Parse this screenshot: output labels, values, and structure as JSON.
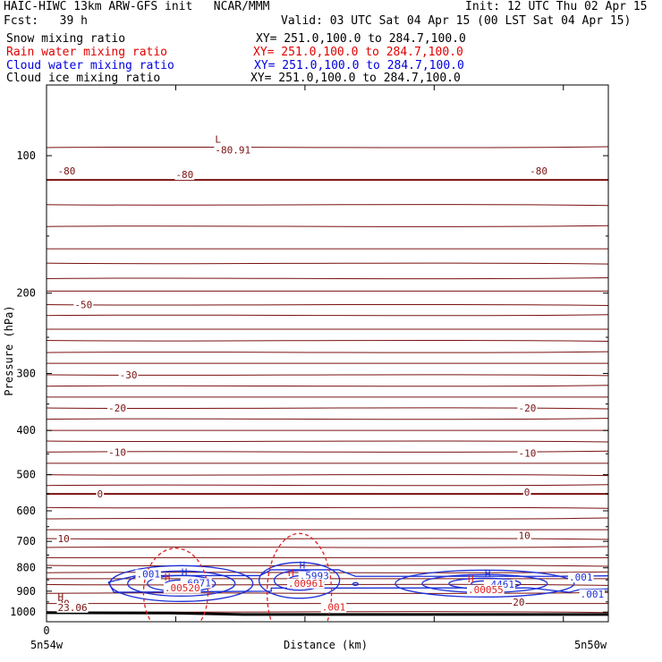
{
  "header": {
    "line1_left": "HAIC-HIWC 13km ARW-GFS init   NCAR/MMM",
    "line1_right": "Init: 12 UTC Thu 02 Apr 15",
    "fcst": "Fcst:   39 h",
    "valid": "Valid: 03 UTC Sat 04 Apr 15 (00 LST Sat 04 Apr 15)",
    "fields": [
      {
        "name": "Snow mixing ratio",
        "xy": "XY= 251.0,100.0 to 284.7,100.0",
        "color": "#000000"
      },
      {
        "name": "Rain water mixing ratio",
        "xy": "XY= 251.0,100.0 to 284.7,100.0",
        "color": "#e00000"
      },
      {
        "name": "Cloud water mixing ratio",
        "xy": "XY= 251.0,100.0 to 284.7,100.0",
        "color": "#0000e0"
      },
      {
        "name": "Cloud ice mixing ratio",
        "xy": "XY= 251.0,100.0 to 284.7,100.0",
        "color": "#000000"
      }
    ]
  },
  "colors": {
    "temperature": "#7a1010",
    "cloud_water": "#1c2fd6",
    "rain_water": "#e02020",
    "surface": "#000000"
  },
  "chart_data": {
    "type": "cross-section contour",
    "xlabel": "Distance (km)",
    "ylabel": "Pressure (hPa)",
    "x_ticks": [
      "0"
    ],
    "x_endpoints": [
      "5n54w",
      "5n50w"
    ],
    "y_ticks": [
      100,
      200,
      300,
      400,
      500,
      600,
      700,
      800,
      900,
      1000
    ],
    "ylim": [
      1050,
      70
    ],
    "y_scale": "log",
    "temperature_contour_labels": [
      {
        "label": "-80",
        "p": 108,
        "x": 0.02
      },
      {
        "label": "-80",
        "p": 110,
        "x": 0.23
      },
      {
        "label": "-80",
        "p": 108,
        "x": 0.86
      },
      {
        "label": "-50",
        "p": 212,
        "x": 0.05
      },
      {
        "label": "-30",
        "p": 302,
        "x": 0.13
      },
      {
        "label": "-20",
        "p": 357,
        "x": 0.11
      },
      {
        "label": "-20",
        "p": 357,
        "x": 0.84
      },
      {
        "label": "-10",
        "p": 446,
        "x": 0.11
      },
      {
        "label": "-10",
        "p": 448,
        "x": 0.84
      },
      {
        "label": "0",
        "p": 551,
        "x": 0.09
      },
      {
        "label": "0",
        "p": 546,
        "x": 0.85
      },
      {
        "label": "10",
        "p": 690,
        "x": 0.02
      },
      {
        "label": "10",
        "p": 680,
        "x": 0.84
      },
      {
        "label": "20",
        "p": 958,
        "x": 0.02
      },
      {
        "label": "20",
        "p": 950,
        "x": 0.83
      }
    ],
    "extrema": [
      {
        "kind": "L",
        "value": "-80.91",
        "field": "temperature",
        "x": 0.3,
        "p": 98
      },
      {
        "kind": "H",
        "value": "23.06",
        "field": "temperature",
        "x": 0.02,
        "p": 985
      },
      {
        "kind": "H",
        "value": ".6971",
        "field": "cloud_water",
        "x": 0.24,
        "p": 870
      },
      {
        "kind": "H",
        "value": ".5993",
        "field": "cloud_water",
        "x": 0.45,
        "p": 840
      },
      {
        "kind": "H",
        "value": ".4461",
        "field": "cloud_water",
        "x": 0.78,
        "p": 876
      },
      {
        "kind": "H",
        "value": ".00520",
        "field": "rain_water",
        "x": 0.21,
        "p": 892
      },
      {
        "kind": "H",
        "value": ".00961",
        "field": "rain_water",
        "x": 0.43,
        "p": 872
      },
      {
        "kind": "H",
        "value": ".00055",
        "field": "rain_water",
        "x": 0.75,
        "p": 900
      }
    ],
    "other_labels": [
      {
        "label": ".001",
        "field": "cloud_water",
        "x": 0.16,
        "p": 825
      },
      {
        "label": ".001",
        "field": "cloud_water",
        "x": 0.93,
        "p": 838
      },
      {
        "label": ".001",
        "field": "cloud_water",
        "x": 0.95,
        "p": 912
      },
      {
        "label": ".001",
        "field": "rain_water",
        "x": 0.49,
        "p": 975
      }
    ]
  }
}
